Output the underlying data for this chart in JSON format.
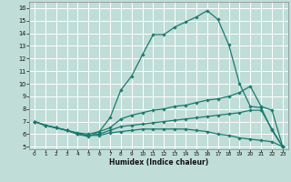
{
  "xlabel": "Humidex (Indice chaleur)",
  "xlim": [
    -0.5,
    23.5
  ],
  "ylim": [
    4.8,
    16.5
  ],
  "xticks": [
    0,
    1,
    2,
    3,
    4,
    5,
    6,
    7,
    8,
    9,
    10,
    11,
    12,
    13,
    14,
    15,
    16,
    17,
    18,
    19,
    20,
    21,
    22,
    23
  ],
  "yticks": [
    5,
    6,
    7,
    8,
    9,
    10,
    11,
    12,
    13,
    14,
    15,
    16
  ],
  "bg_color": "#c0ddd8",
  "grid_color": "#aacccc",
  "line_color": "#1a7a6e",
  "line_width": 0.9,
  "marker": "D",
  "marker_size": 1.8,
  "lines": [
    {
      "x": [
        0,
        1,
        2,
        3,
        4,
        5,
        6,
        7,
        8,
        9,
        10,
        11,
        12,
        13,
        14,
        15,
        16,
        17,
        18,
        19,
        20,
        21,
        22,
        23
      ],
      "y": [
        7.0,
        6.7,
        6.5,
        6.3,
        6.0,
        5.8,
        6.2,
        7.3,
        9.5,
        10.6,
        12.3,
        13.9,
        13.9,
        14.5,
        14.9,
        15.3,
        15.8,
        15.1,
        13.1,
        10.0,
        8.2,
        8.1,
        6.3,
        5.0
      ]
    },
    {
      "x": [
        0,
        1,
        2,
        3,
        4,
        5,
        6,
        7,
        8,
        9,
        10,
        11,
        12,
        13,
        14,
        15,
        16,
        17,
        18,
        19,
        20,
        21,
        22,
        23
      ],
      "y": [
        7.0,
        6.7,
        6.5,
        6.3,
        6.1,
        6.0,
        6.2,
        6.5,
        7.2,
        7.5,
        7.7,
        7.9,
        8.0,
        8.2,
        8.3,
        8.5,
        8.7,
        8.8,
        9.0,
        9.3,
        9.8,
        8.2,
        7.9,
        5.0
      ]
    },
    {
      "x": [
        0,
        1,
        2,
        3,
        4,
        5,
        6,
        7,
        8,
        9,
        10,
        11,
        12,
        13,
        14,
        15,
        16,
        17,
        18,
        19,
        20,
        21,
        22,
        23
      ],
      "y": [
        7.0,
        6.7,
        6.5,
        6.3,
        6.0,
        5.9,
        6.0,
        6.3,
        6.6,
        6.7,
        6.8,
        6.9,
        7.0,
        7.1,
        7.2,
        7.3,
        7.4,
        7.5,
        7.6,
        7.7,
        7.9,
        7.9,
        6.4,
        5.0
      ]
    },
    {
      "x": [
        0,
        1,
        2,
        3,
        4,
        5,
        6,
        7,
        8,
        9,
        10,
        11,
        12,
        13,
        14,
        15,
        16,
        17,
        18,
        19,
        20,
        21,
        22,
        23
      ],
      "y": [
        7.0,
        6.7,
        6.5,
        6.3,
        6.0,
        5.9,
        5.9,
        6.1,
        6.2,
        6.3,
        6.4,
        6.4,
        6.4,
        6.4,
        6.4,
        6.3,
        6.2,
        6.0,
        5.9,
        5.7,
        5.6,
        5.5,
        5.4,
        5.0
      ]
    }
  ]
}
